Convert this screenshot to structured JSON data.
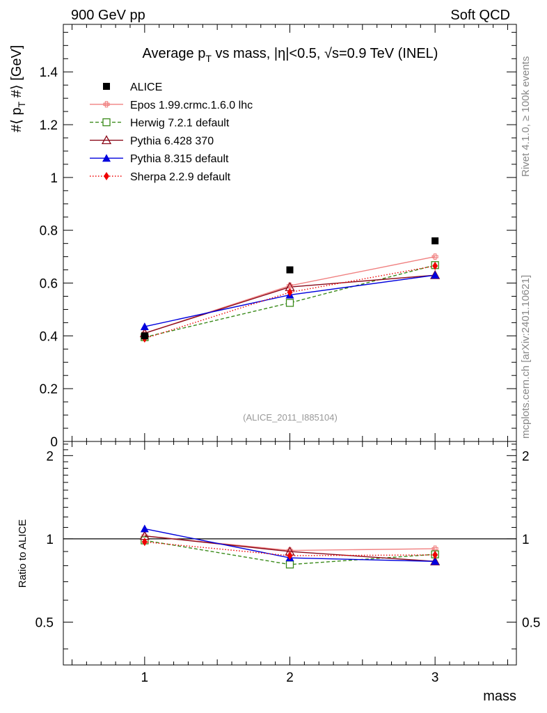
{
  "header": {
    "left": "900 GeV pp",
    "right": "Soft QCD"
  },
  "side_labels": {
    "rivet": "Rivet 4.1.0, ≥ 100k events",
    "source": "mcplots.cern.ch [arXiv:2401.10621]"
  },
  "chart_data": {
    "type": "line",
    "title": "Average p_T vs mass, |η|<0.5, √s=0.9 TeV (INEL)",
    "title_parts": {
      "a": "Average p",
      "sub": "T",
      "b": " vs mass, |η|<0.5, √s=0.9 TeV (INEL)"
    },
    "ylabel": "#⟨ p_T #⟩ [GeV]",
    "ylabel_parts": {
      "a": "#⟨ p",
      "sub": "T",
      "b": " #⟩ [GeV]"
    },
    "xlabel": "mass",
    "ratio_ylabel": "Ratio to ALICE",
    "watermark": "(ALICE_2011_I885104)",
    "x": [
      1,
      2,
      3
    ],
    "xlim": [
      0.44,
      3.56
    ],
    "ylim": [
      0,
      1.58
    ],
    "ratio_ylim": [
      0.35,
      2.25
    ],
    "main_yticks": [
      {
        "v": 0,
        "label": "0"
      },
      {
        "v": 0.2,
        "label": "0.2"
      },
      {
        "v": 0.4,
        "label": "0.4"
      },
      {
        "v": 0.6,
        "label": "0.6"
      },
      {
        "v": 0.8,
        "label": "0.8"
      },
      {
        "v": 1.0,
        "label": "1"
      },
      {
        "v": 1.2,
        "label": "1.2"
      },
      {
        "v": 1.4,
        "label": "1.4"
      }
    ],
    "ratio_yticks": [
      {
        "v": 0.5,
        "label": "0.5"
      },
      {
        "v": 1,
        "label": "1"
      },
      {
        "v": 2,
        "label": "2"
      }
    ],
    "xticks": [
      {
        "v": 1,
        "label": "1"
      },
      {
        "v": 2,
        "label": "2"
      },
      {
        "v": 3,
        "label": "3"
      }
    ],
    "reference": {
      "name": "ALICE",
      "values": [
        0.4,
        0.65,
        0.76
      ],
      "color": "#000000",
      "marker": "square"
    },
    "series": [
      {
        "name": "Epos 1.99.crmc.1.6.0 lhc",
        "values": [
          0.41,
          0.59,
          0.7
        ],
        "color": "#f08080",
        "dash": "",
        "marker": "cross"
      },
      {
        "name": "Herwig 7.2.1 default",
        "values": [
          0.395,
          0.525,
          0.668
        ],
        "color": "#3a8a1a",
        "dash": "5,3",
        "marker": "open-square"
      },
      {
        "name": "Pythia 6.428 370",
        "values": [
          0.41,
          0.585,
          0.63
        ],
        "color": "#8b0a1a",
        "dash": "",
        "marker": "open-triangle"
      },
      {
        "name": "Pythia 8.315 default",
        "values": [
          0.435,
          0.555,
          0.63
        ],
        "color": "#0000dd",
        "dash": "",
        "marker": "triangle"
      },
      {
        "name": "Sherpa 2.2.9 default",
        "values": [
          0.39,
          0.565,
          0.665
        ],
        "color": "#ee0000",
        "dash": "1.5,2.5",
        "marker": "diamond"
      }
    ]
  }
}
